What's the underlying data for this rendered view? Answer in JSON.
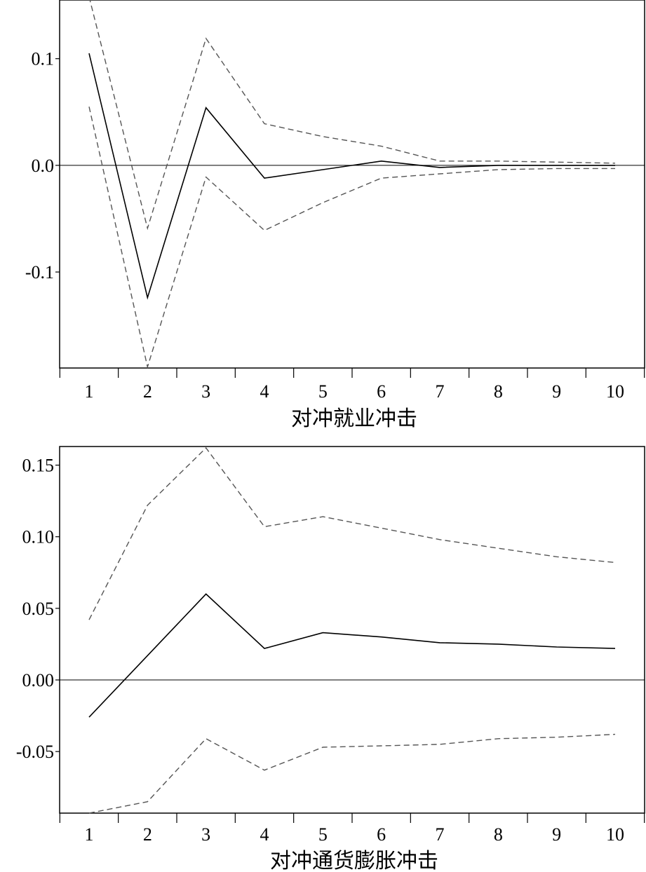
{
  "chart_data": [
    {
      "type": "line",
      "x": [
        1,
        2,
        3,
        4,
        5,
        6,
        7,
        8,
        9,
        10
      ],
      "xlabel": "对冲就业冲击",
      "ylabel": "",
      "ylim": [
        -0.19,
        0.155
      ],
      "yticks": [
        0.1,
        0.0,
        -0.1
      ],
      "ytick_labels": [
        "0.1",
        "0.0",
        "-0.1"
      ],
      "xtick_labels": [
        "1",
        "2",
        "3",
        "4",
        "5",
        "6",
        "7",
        "8",
        "9",
        "10"
      ],
      "zero_line": true,
      "grid": false,
      "series": [
        {
          "style": "solid",
          "color": "#000000",
          "values": [
            0.105,
            -0.124,
            0.054,
            -0.012,
            -0.004,
            0.004,
            -0.002,
            0.0,
            0.0,
            0.0
          ]
        },
        {
          "style": "dashed",
          "color": "#555555",
          "values": [
            0.158,
            -0.059,
            0.119,
            0.039,
            0.027,
            0.018,
            0.004,
            0.004,
            0.003,
            0.002
          ]
        },
        {
          "style": "dashed",
          "color": "#555555",
          "values": [
            0.055,
            -0.189,
            -0.011,
            -0.061,
            -0.035,
            -0.012,
            -0.008,
            -0.004,
            -0.003,
            -0.003
          ]
        }
      ]
    },
    {
      "type": "line",
      "x": [
        1,
        2,
        3,
        4,
        5,
        6,
        7,
        8,
        9,
        10
      ],
      "xlabel": "对冲通货膨胀冲击",
      "ylabel": "",
      "ylim": [
        -0.093,
        0.163
      ],
      "yticks": [
        0.15,
        0.1,
        0.05,
        0.0,
        -0.05
      ],
      "ytick_labels": [
        "0.15",
        "0.10",
        "0.05",
        "0.00",
        "-0.05"
      ],
      "xtick_labels": [
        "1",
        "2",
        "3",
        "4",
        "5",
        "6",
        "7",
        "8",
        "9",
        "10"
      ],
      "zero_line": true,
      "grid": false,
      "series": [
        {
          "style": "solid",
          "color": "#000000",
          "values": [
            -0.026,
            0.017,
            0.06,
            0.022,
            0.033,
            0.03,
            0.026,
            0.025,
            0.023,
            0.022
          ]
        },
        {
          "style": "dashed",
          "color": "#555555",
          "values": [
            0.042,
            0.122,
            0.162,
            0.107,
            0.114,
            0.106,
            0.098,
            0.092,
            0.086,
            0.082
          ]
        },
        {
          "style": "dashed",
          "color": "#555555",
          "values": [
            -0.093,
            -0.085,
            -0.041,
            -0.063,
            -0.047,
            -0.046,
            -0.045,
            -0.041,
            -0.04,
            -0.038
          ]
        }
      ]
    }
  ]
}
